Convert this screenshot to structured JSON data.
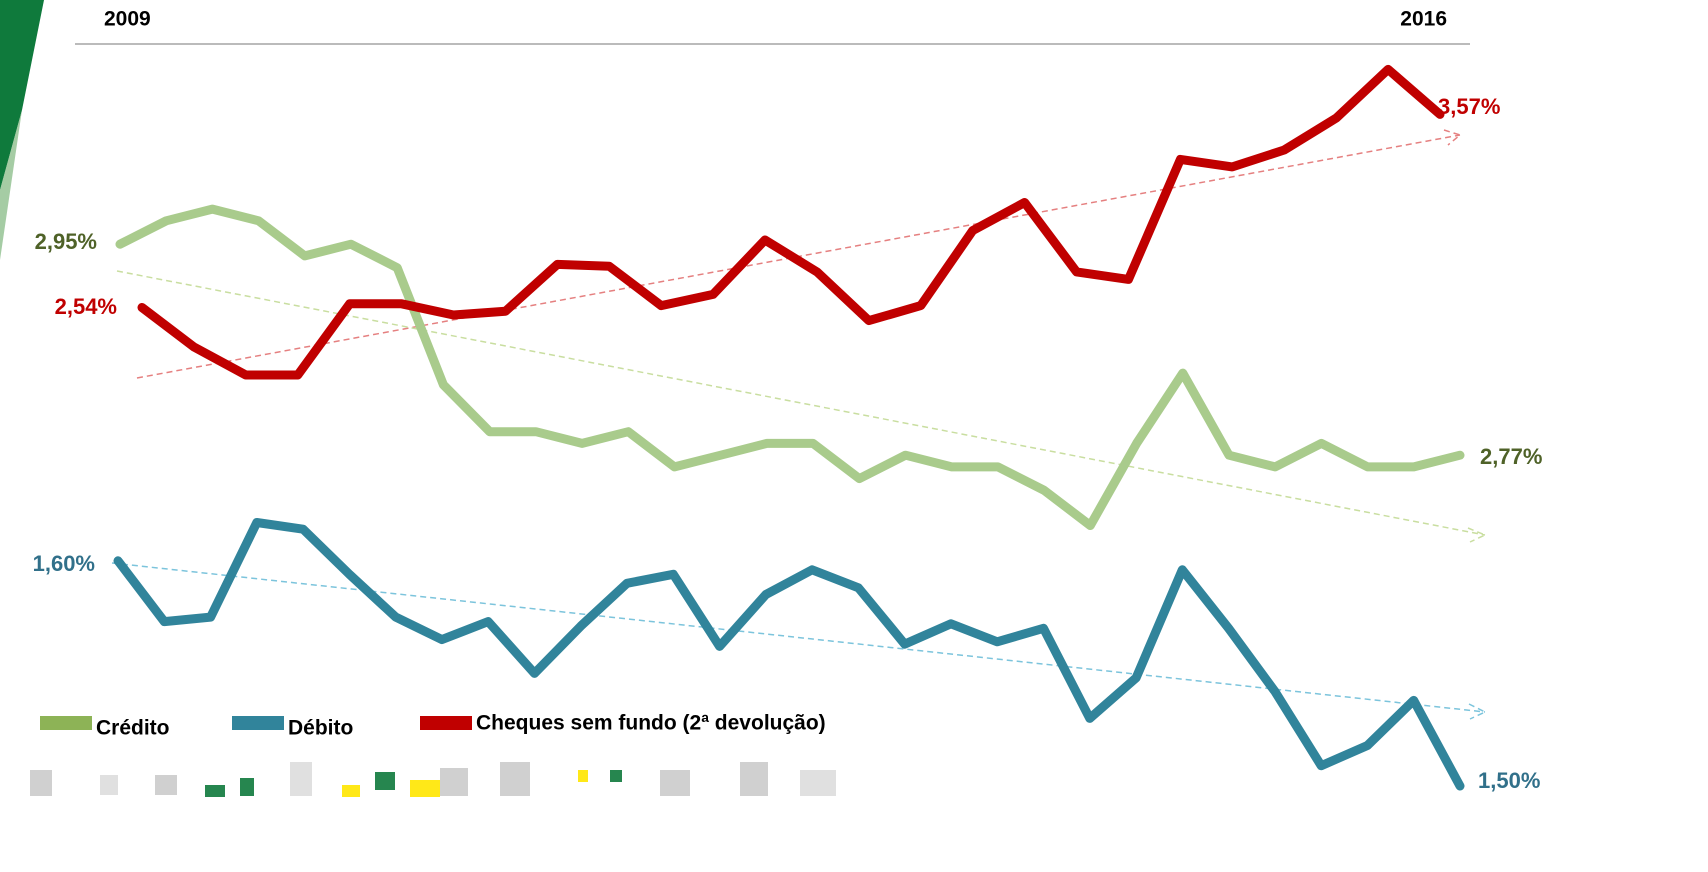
{
  "chart_data": {
    "type": "line",
    "x_start_label": "2009",
    "x_end_label": "2016",
    "series": [
      {
        "name": "Crédito",
        "color": "#a9cb8c",
        "label_color": "#4f6228",
        "legend_color": "#8db356",
        "ylim": [
          2.48,
          3.12
        ],
        "values": [
          2.95,
          2.97,
          2.98,
          2.97,
          2.94,
          2.95,
          2.93,
          2.83,
          2.79,
          2.79,
          2.78,
          2.79,
          2.76,
          2.77,
          2.78,
          2.78,
          2.75,
          2.77,
          2.76,
          2.76,
          2.74,
          2.71,
          2.78,
          2.84,
          2.77,
          2.76,
          2.78,
          2.76,
          2.76,
          2.77
        ],
        "value_labels": [
          "2,95%",
          null,
          null,
          null,
          null,
          null,
          null,
          null,
          null,
          null,
          null,
          null,
          null,
          null,
          null,
          null,
          null,
          null,
          null,
          null,
          null,
          null,
          null,
          null,
          null,
          null,
          null,
          null,
          null,
          "2,77%"
        ]
      },
      {
        "name": "Débito",
        "color": "#31849b",
        "label_color": "#31708a",
        "legend_color": "#31849b",
        "ylim": [
          1.496,
          1.829
        ],
        "values": [
          1.6,
          1.573,
          1.575,
          1.617,
          1.614,
          1.594,
          1.575,
          1.565,
          1.573,
          1.55,
          1.571,
          1.59,
          1.594,
          1.562,
          1.585,
          1.596,
          1.588,
          1.563,
          1.572,
          1.564,
          1.57,
          1.53,
          1.548,
          1.596,
          1.57,
          1.542,
          1.509,
          1.518,
          1.538,
          1.5
        ],
        "value_labels": [
          "1,60%",
          null,
          null,
          null,
          null,
          null,
          null,
          null,
          null,
          null,
          null,
          null,
          null,
          null,
          null,
          null,
          null,
          null,
          null,
          null,
          null,
          null,
          null,
          null,
          null,
          null,
          null,
          null,
          null,
          "1,50%"
        ]
      },
      {
        "name": "Cheques sem fundo (2ª devolução)",
        "color": "#c00000",
        "label_color": "#c00000",
        "legend_color": "#c00000",
        "ylim": [
          -0.06,
          3.94
        ],
        "values": [
          2.54,
          2.33,
          2.18,
          2.18,
          2.56,
          2.56,
          2.5,
          2.52,
          2.77,
          2.76,
          2.55,
          2.61,
          2.9,
          2.73,
          2.47,
          2.55,
          2.95,
          3.1,
          2.73,
          2.69,
          3.33,
          3.29,
          3.38,
          3.55,
          3.81,
          3.57
        ],
        "value_labels": [
          "2,54%",
          null,
          null,
          null,
          null,
          null,
          null,
          null,
          null,
          null,
          null,
          null,
          null,
          null,
          null,
          null,
          null,
          null,
          null,
          null,
          null,
          null,
          null,
          null,
          null,
          "3,57%"
        ]
      }
    ]
  }
}
